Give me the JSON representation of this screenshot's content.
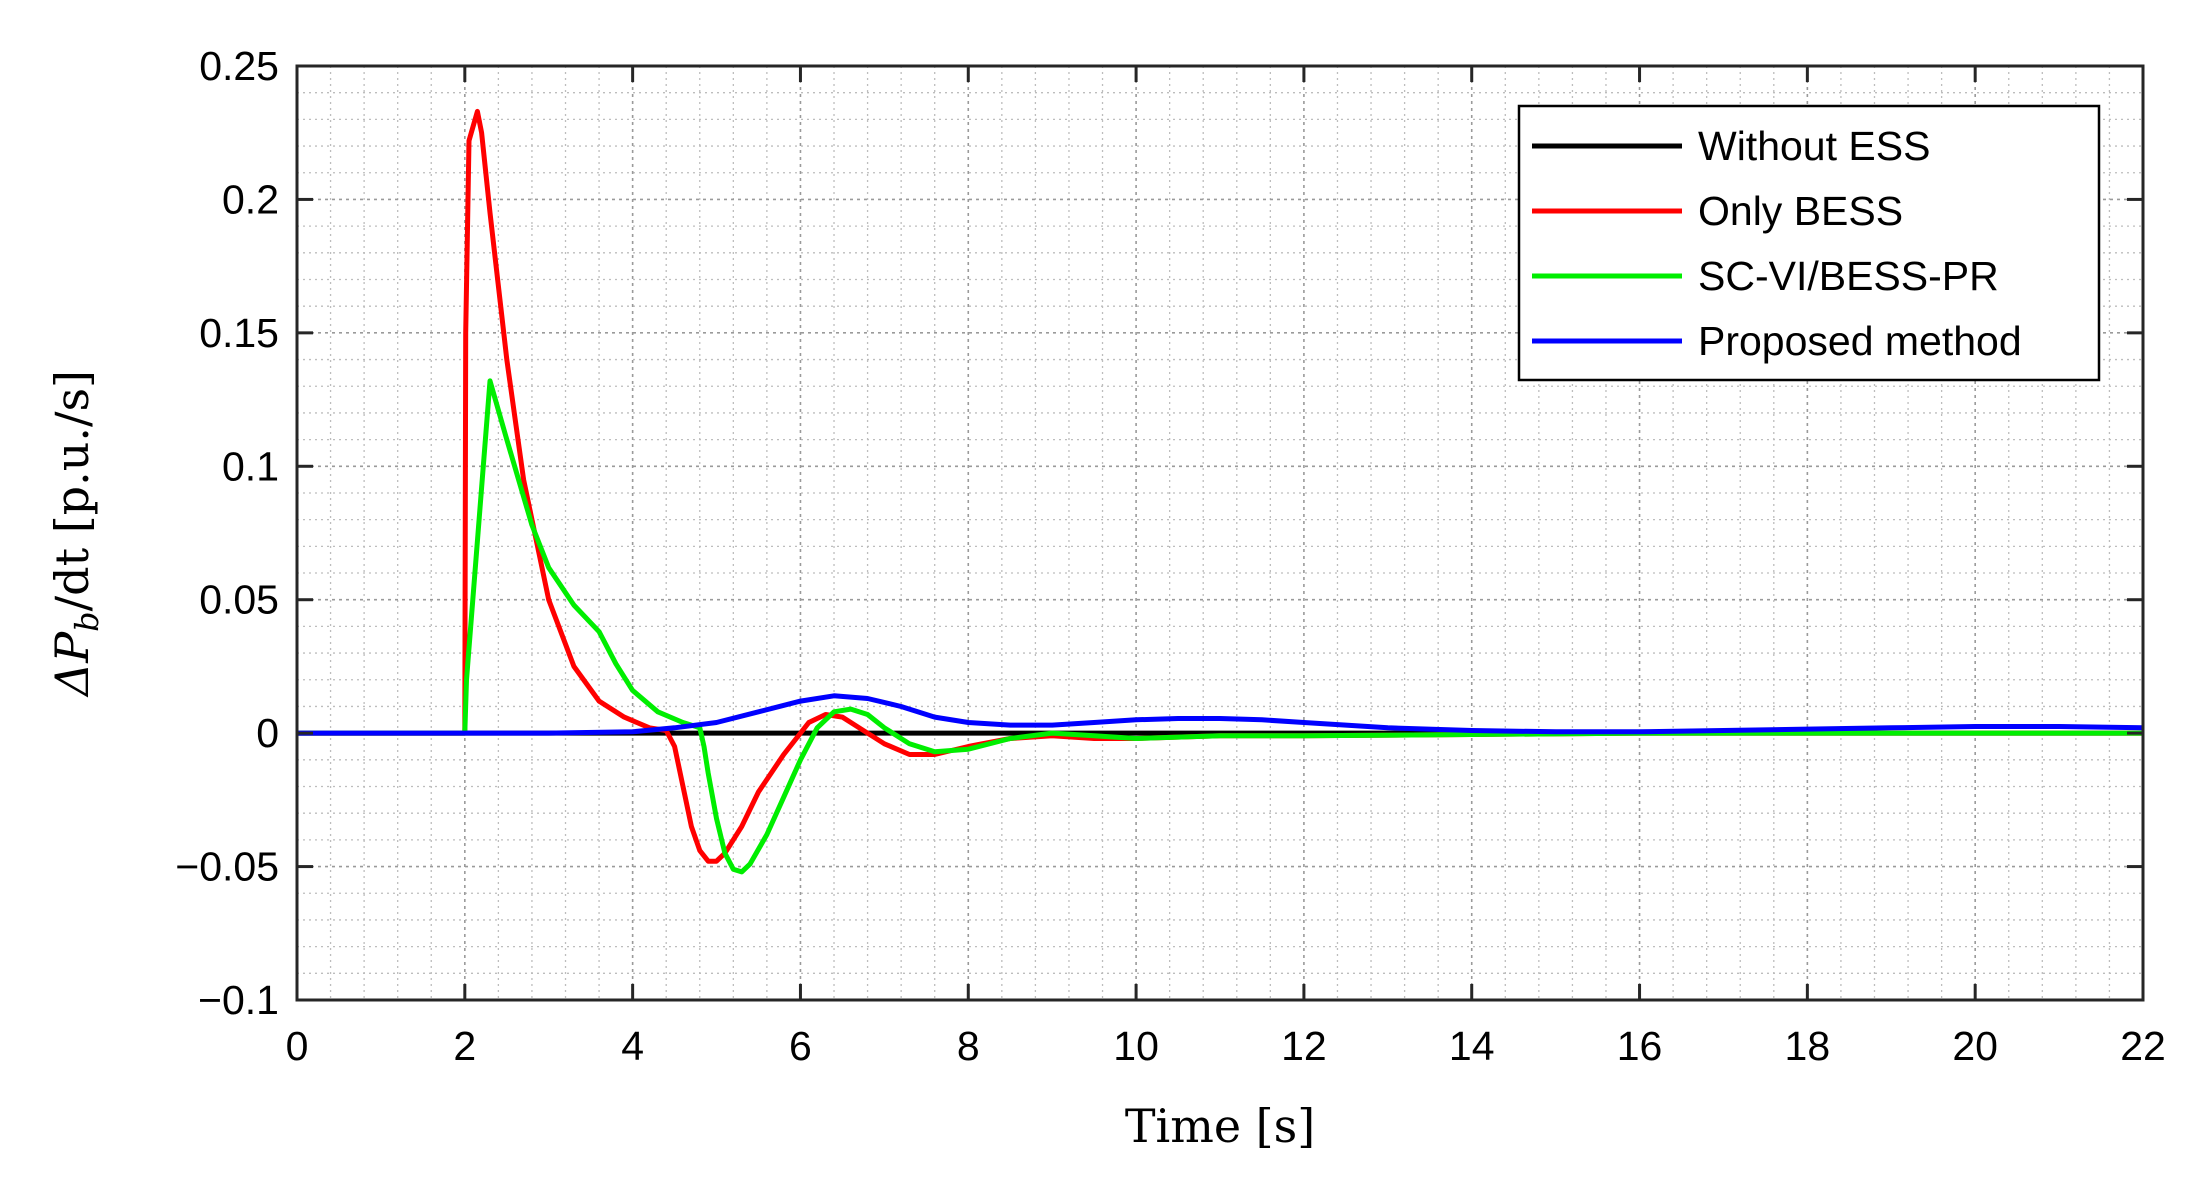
{
  "chart_data": {
    "type": "line",
    "xlabel": "Time [s]",
    "ylabel": "ΔP_b/dt [p.u./s]",
    "ylabel_main": "ΔP",
    "ylabel_sub": "b",
    "ylabel_rest": "/dt [p.u./s]",
    "xlim": [
      0,
      22
    ],
    "ylim": [
      -0.1,
      0.25
    ],
    "xticks": [
      0,
      2,
      4,
      6,
      8,
      10,
      12,
      14,
      16,
      18,
      20,
      22
    ],
    "xtick_labels": [
      "0",
      "2",
      "4",
      "6",
      "8",
      "10",
      "12",
      "14",
      "16",
      "18",
      "20",
      "22"
    ],
    "yticks": [
      -0.1,
      -0.05,
      0,
      0.05,
      0.1,
      0.15,
      0.2,
      0.25
    ],
    "ytick_labels": [
      "−0.1",
      "−0.05",
      "0",
      "0.05",
      "0.1",
      "0.15",
      "0.2",
      "0.25"
    ],
    "grid": true,
    "minor_grid": true,
    "legend_position": "top-right",
    "series": [
      {
        "name": "Without ESS",
        "color": "#000000",
        "x": [
          0,
          22
        ],
        "y": [
          0,
          0
        ]
      },
      {
        "name": "Only BESS",
        "color": "#ff0000",
        "x": [
          0,
          2.0,
          2.01,
          2.05,
          2.15,
          2.2,
          2.3,
          2.5,
          2.7,
          3.0,
          3.3,
          3.6,
          3.9,
          4.2,
          4.4,
          4.5,
          4.6,
          4.7,
          4.8,
          4.9,
          5.0,
          5.1,
          5.3,
          5.5,
          5.8,
          6.1,
          6.3,
          6.5,
          6.7,
          7.0,
          7.3,
          7.6,
          8.0,
          8.5,
          9.0,
          9.5,
          10.0,
          11.0,
          12.0,
          14.0,
          16.0,
          18.0,
          20.0,
          22.0
        ],
        "y": [
          0,
          0,
          0.15,
          0.222,
          0.233,
          0.225,
          0.195,
          0.14,
          0.095,
          0.05,
          0.025,
          0.012,
          0.006,
          0.002,
          0.001,
          -0.005,
          -0.02,
          -0.035,
          -0.044,
          -0.048,
          -0.048,
          -0.045,
          -0.035,
          -0.022,
          -0.008,
          0.004,
          0.007,
          0.006,
          0.002,
          -0.004,
          -0.008,
          -0.008,
          -0.005,
          -0.002,
          -0.001,
          -0.002,
          -0.002,
          -0.001,
          -0.001,
          -0.0005,
          0,
          0,
          0,
          0
        ]
      },
      {
        "name": "SC-VI/BESS-PR",
        "color": "#00ee00",
        "x": [
          0,
          2.0,
          2.02,
          2.3,
          2.5,
          2.8,
          3.0,
          3.3,
          3.6,
          3.8,
          4.0,
          4.3,
          4.6,
          4.8,
          4.85,
          4.9,
          5.0,
          5.1,
          5.2,
          5.3,
          5.4,
          5.6,
          5.8,
          6.0,
          6.2,
          6.4,
          6.6,
          6.8,
          7.0,
          7.3,
          7.6,
          8.0,
          8.5,
          9.0,
          9.5,
          10.0,
          11.0,
          12.0,
          14.0,
          16.0,
          18.0,
          20.0,
          22.0
        ],
        "y": [
          0,
          0,
          0.02,
          0.132,
          0.11,
          0.078,
          0.062,
          0.048,
          0.038,
          0.026,
          0.016,
          0.008,
          0.004,
          0.002,
          -0.005,
          -0.015,
          -0.032,
          -0.045,
          -0.051,
          -0.052,
          -0.049,
          -0.038,
          -0.024,
          -0.01,
          0.002,
          0.008,
          0.009,
          0.007,
          0.002,
          -0.004,
          -0.007,
          -0.006,
          -0.002,
          0,
          -0.001,
          -0.002,
          -0.001,
          -0.001,
          -0.0005,
          0,
          0,
          0,
          0
        ]
      },
      {
        "name": "Proposed method",
        "color": "#0000ff",
        "x": [
          0,
          2.0,
          3.0,
          4.0,
          4.5,
          5.0,
          5.5,
          6.0,
          6.4,
          6.8,
          7.2,
          7.6,
          8.0,
          8.5,
          9.0,
          9.5,
          10.0,
          10.5,
          11.0,
          11.5,
          12.0,
          13.0,
          14.0,
          15.0,
          16.0,
          17.0,
          18.0,
          19.0,
          20.0,
          21.0,
          22.0
        ],
        "y": [
          0,
          0,
          0,
          0.0005,
          0.002,
          0.004,
          0.008,
          0.012,
          0.014,
          0.013,
          0.01,
          0.006,
          0.004,
          0.003,
          0.003,
          0.004,
          0.005,
          0.0055,
          0.0055,
          0.005,
          0.004,
          0.002,
          0.001,
          0.0005,
          0.0005,
          0.001,
          0.0015,
          0.002,
          0.0025,
          0.0025,
          0.002
        ]
      }
    ]
  }
}
